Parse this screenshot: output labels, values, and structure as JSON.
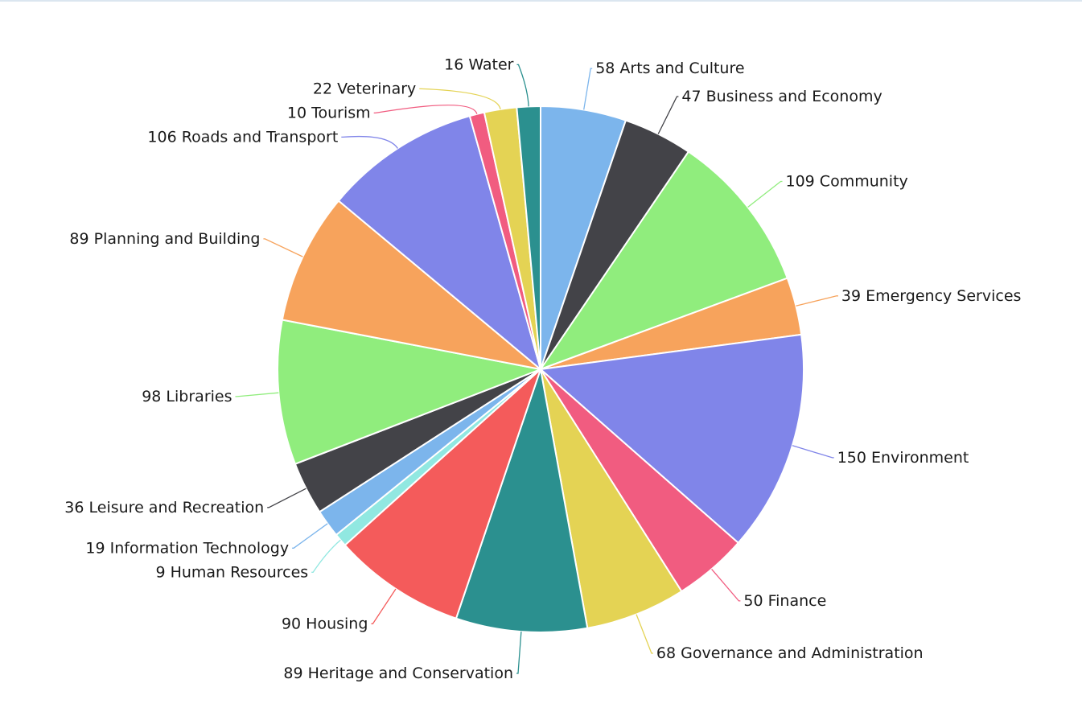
{
  "chart_data": {
    "type": "pie",
    "title": "",
    "start_angle_deg": 0,
    "direction": "clockwise",
    "slices": [
      {
        "label": "Arts and Culture",
        "value": 58,
        "color": "#7cb5ec",
        "display": "58 Arts and Culture"
      },
      {
        "label": "Business and Economy",
        "value": 47,
        "color": "#434348",
        "display": "47 Business and Economy"
      },
      {
        "label": "Community",
        "value": 109,
        "color": "#90ed7d",
        "display": "109 Community"
      },
      {
        "label": "Emergency Services",
        "value": 39,
        "color": "#f7a35c",
        "display": "39 Emergency Services"
      },
      {
        "label": "Environment",
        "value": 150,
        "color": "#8085e9",
        "display": "150 Environment"
      },
      {
        "label": "Finance",
        "value": 50,
        "color": "#f15c80",
        "display": "50 Finance"
      },
      {
        "label": "Governance and Administration",
        "value": 68,
        "color": "#e4d354",
        "display": "68 Governance and Administration"
      },
      {
        "label": "Heritage and Conservation",
        "value": 89,
        "color": "#2b908f",
        "display": "89 Heritage and Conservation"
      },
      {
        "label": "Housing",
        "value": 90,
        "color": "#f45b5b",
        "display": "90 Housing"
      },
      {
        "label": "Human Resources",
        "value": 9,
        "color": "#91e8e1",
        "display": "9 Human Resources"
      },
      {
        "label": "Information Technology",
        "value": 19,
        "color": "#7cb5ec",
        "display": "19 Information Technology"
      },
      {
        "label": "Leisure and Recreation",
        "value": 36,
        "color": "#434348",
        "display": "36 Leisure and Recreation"
      },
      {
        "label": "Libraries",
        "value": 98,
        "color": "#90ed7d",
        "display": "98 Libraries"
      },
      {
        "label": "Planning and Building",
        "value": 89,
        "color": "#f7a35c",
        "display": "89 Planning and Building"
      },
      {
        "label": "Roads and Transport",
        "value": 106,
        "color": "#8085e9",
        "display": "106 Roads and Transport"
      },
      {
        "label": "Tourism",
        "value": 10,
        "color": "#f15c80",
        "display": "10 Tourism"
      },
      {
        "label": "Veterinary",
        "value": 22,
        "color": "#e4d354",
        "display": "22 Veterinary"
      },
      {
        "label": "Water",
        "value": 16,
        "color": "#2b908f",
        "display": "16 Water"
      }
    ]
  }
}
